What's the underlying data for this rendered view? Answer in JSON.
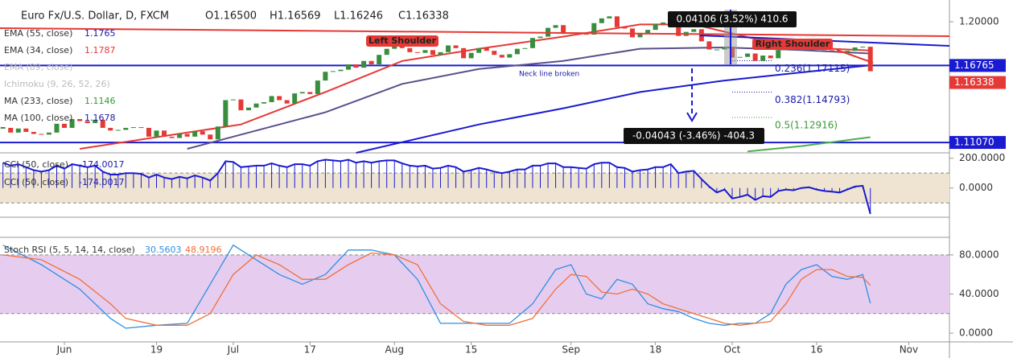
{
  "chart_data": {
    "type": "candlestick",
    "title": "Euro Fx/U.S. Dollar, D, FXCM",
    "ohlc": [
      {
        "value": 1.165,
        "label": "O1.16500"
      },
      {
        "value": 1.16569,
        "label": "H1.16569"
      },
      {
        "value": 1.16246,
        "label": "L1.16246"
      },
      {
        "value": 1.16338,
        "label": "C1.16338"
      }
    ],
    "closes": [
      1.1215,
      1.118,
      1.121,
      1.1185,
      1.117,
      1.1165,
      1.118,
      1.1245,
      1.1215,
      1.128,
      1.1265,
      1.125,
      1.1275,
      1.1215,
      1.1195,
      1.12,
      1.1215,
      1.122,
      1.1215,
      1.115,
      1.1195,
      1.115,
      1.114,
      1.117,
      1.115,
      1.119,
      1.1165,
      1.113,
      1.1225,
      1.142,
      1.1425,
      1.1345,
      1.1365,
      1.1395,
      1.1405,
      1.145,
      1.142,
      1.1395,
      1.147,
      1.148,
      1.1465,
      1.1565,
      1.163,
      1.1635,
      1.1645,
      1.1685,
      1.166,
      1.171,
      1.1685,
      1.1755,
      1.18,
      1.184,
      1.1805,
      1.1775,
      1.177,
      1.179,
      1.1755,
      1.1775,
      1.1825,
      1.1805,
      1.173,
      1.177,
      1.1805,
      1.1785,
      1.1755,
      1.1735,
      1.176,
      1.18,
      1.1805,
      1.188,
      1.189,
      1.1955,
      1.1975,
      1.191,
      1.192,
      1.191,
      1.1905,
      1.199,
      1.2025,
      1.204,
      1.196,
      1.195,
      1.1885,
      1.1915,
      1.194,
      1.1985,
      1.1995,
      1.2035,
      1.1895,
      1.1925,
      1.1945,
      1.1855,
      1.1795,
      1.1795,
      1.1815,
      1.1735,
      1.174,
      1.1765,
      1.171,
      1.175,
      1.173,
      1.179,
      1.18,
      1.1795,
      1.1825,
      1.183,
      1.1805,
      1.179,
      1.178,
      1.177,
      1.1785,
      1.181,
      1.1815,
      1.16338
    ],
    "up_color": "#388e3c",
    "down_color": "#e53935",
    "xticks": [
      {
        "value": 8,
        "label": "Jun"
      },
      {
        "value": 20,
        "label": "19"
      },
      {
        "value": 30,
        "label": "Jul"
      },
      {
        "value": 40,
        "label": "17"
      },
      {
        "value": 51,
        "label": "Aug"
      },
      {
        "value": 61,
        "label": "15"
      },
      {
        "value": 74,
        "label": "Sep"
      },
      {
        "value": 85,
        "label": "18"
      },
      {
        "value": 95,
        "label": "Oct"
      },
      {
        "value": 106,
        "label": "16"
      },
      {
        "value": 118,
        "label": "Nov"
      }
    ],
    "ylim": [
      1.103,
      1.2161
    ],
    "yticks": [
      {
        "value": 1.2,
        "label": "1.20000"
      }
    ],
    "indicators": [
      {
        "name": "EMA (55, close)",
        "last": 1.1765,
        "color": "#5a4f8c",
        "label_color": "#1a1aa6",
        "x": [
          24,
          42,
          52,
          62,
          73,
          83,
          94,
          104,
          113
        ],
        "values": [
          1.106,
          1.133,
          1.154,
          1.165,
          1.171,
          1.18,
          1.181,
          1.179,
          1.1765
        ]
      },
      {
        "name": "EMA (34, close)",
        "last": 1.1787,
        "color": "#e53935",
        "label_color": "#e53935",
        "x": [
          10,
          31,
          42,
          52,
          62,
          73,
          83,
          90,
          99,
          104,
          113
        ],
        "values": [
          1.106,
          1.124,
          1.148,
          1.171,
          1.18,
          1.189,
          1.198,
          1.198,
          1.186,
          1.181,
          1.1787
        ]
      },
      {
        "name": "EMA (89, close)",
        "color": "#bbbbbb"
      },
      {
        "name": "Ichimoku (9, 26, 52, 26)",
        "color": "#bbbbbb"
      },
      {
        "name": "MA (233, close)",
        "last": 1.1146,
        "color": "#4caf50",
        "label_color": "#2e9e2e",
        "x": [
          97,
          104,
          113
        ],
        "values": [
          1.104,
          1.108,
          1.1146
        ]
      },
      {
        "name": "MA (100, close)",
        "last": 1.1678,
        "color": "#1a1ad0",
        "label_color": "#1a1aa6",
        "x": [
          46,
          62,
          73,
          83,
          94,
          104,
          113
        ],
        "values": [
          1.103,
          1.124,
          1.136,
          1.148,
          1.1565,
          1.1625,
          1.1678
        ]
      }
    ],
    "price_labels": [
      {
        "value": 1.16765,
        "label": "1.16765",
        "color": "#1a1ad0",
        "line": true
      },
      {
        "value": 1.16338,
        "label": "1.16338",
        "color": "#e53935",
        "line": false
      },
      {
        "value": 1.1107,
        "label": "1.11070",
        "color": "#1a1ad0",
        "line": true
      }
    ],
    "fib": [
      {
        "value": 1.17115,
        "label": "0.236(1.17115)",
        "color": "#1a1aa6"
      },
      {
        "value": 1.14793,
        "label": "0.382(1.14793)",
        "color": "#1a1aa6"
      },
      {
        "value": 1.12916,
        "label": "0.5(1.12916)",
        "color": "#3a9a3a"
      }
    ],
    "left_shoulder": "Left Shoulder",
    "right_shoulder": "Right Shoulder",
    "neck_line": "Neck line broken",
    "measures": [
      "0.04106 (3.52%) 410.6",
      "-0.04043 (-3.46%) -404.3"
    ],
    "cci": {
      "name": "CCI (50, close)",
      "color": "#1a1ad0",
      "ylim": [
        -196,
        236
      ],
      "yticks": [
        {
          "value": 200,
          "label": "200.0000"
        },
        {
          "value": 0,
          "label": "0.0000"
        }
      ],
      "band": [
        100,
        -100
      ],
      "values": [
        170,
        150,
        160,
        140,
        120,
        110,
        120,
        150,
        130,
        160,
        150,
        140,
        150,
        110,
        90,
        90,
        100,
        100,
        95,
        70,
        90,
        70,
        60,
        75,
        65,
        85,
        70,
        50,
        100,
        180,
        175,
        140,
        145,
        150,
        150,
        165,
        150,
        140,
        160,
        160,
        150,
        180,
        190,
        185,
        180,
        190,
        170,
        180,
        170,
        180,
        185,
        185,
        165,
        150,
        145,
        150,
        130,
        135,
        150,
        140,
        110,
        120,
        135,
        125,
        110,
        100,
        110,
        125,
        125,
        150,
        150,
        165,
        165,
        140,
        140,
        135,
        130,
        160,
        170,
        170,
        140,
        135,
        110,
        120,
        125,
        140,
        140,
        160,
        100,
        110,
        115,
        60,
        10,
        -30,
        -10,
        -70,
        -60,
        -45,
        -80,
        -55,
        -60,
        -20,
        -10,
        -15,
        0,
        5,
        -10,
        -20,
        -25,
        -30,
        -10,
        10,
        15,
        -174.0017
      ]
    },
    "stoch": {
      "name": "Stoch RSI (5, 5, 14, 14, close)",
      "ylim": [
        -9,
        98
      ],
      "yticks": [
        {
          "value": 80,
          "label": "80.0000"
        },
        {
          "value": 40,
          "label": "40.0000"
        },
        {
          "value": 0,
          "label": "0.0000"
        }
      ],
      "band": [
        20,
        80
      ],
      "x": [
        0,
        5,
        10,
        14,
        16,
        20,
        24,
        27,
        30,
        33,
        36,
        39,
        42,
        45,
        48,
        51,
        54,
        57,
        60,
        63,
        66,
        69,
        72,
        74,
        76,
        78,
        80,
        82,
        84,
        86,
        88,
        90,
        92,
        94,
        96,
        98,
        100,
        102,
        104,
        106,
        108,
        110,
        112,
        113
      ],
      "series": [
        {
          "color": "#2f8fe0",
          "values": [
            90,
            70,
            45,
            15,
            5,
            8,
            10,
            50,
            90,
            75,
            60,
            50,
            60,
            85,
            85,
            80,
            55,
            10,
            10,
            10,
            10,
            30,
            65,
            70,
            40,
            35,
            55,
            50,
            30,
            25,
            22,
            15,
            10,
            8,
            10,
            10,
            20,
            50,
            65,
            70,
            58,
            55,
            60,
            30.5603
          ]
        },
        {
          "color": "#f0703a",
          "values": [
            80,
            75,
            55,
            30,
            15,
            8,
            8,
            20,
            60,
            80,
            70,
            55,
            55,
            70,
            82,
            80,
            70,
            30,
            12,
            8,
            8,
            15,
            45,
            60,
            58,
            42,
            40,
            45,
            40,
            30,
            25,
            20,
            15,
            10,
            8,
            10,
            12,
            30,
            55,
            65,
            65,
            58,
            57,
            48.9196
          ]
        }
      ]
    }
  }
}
